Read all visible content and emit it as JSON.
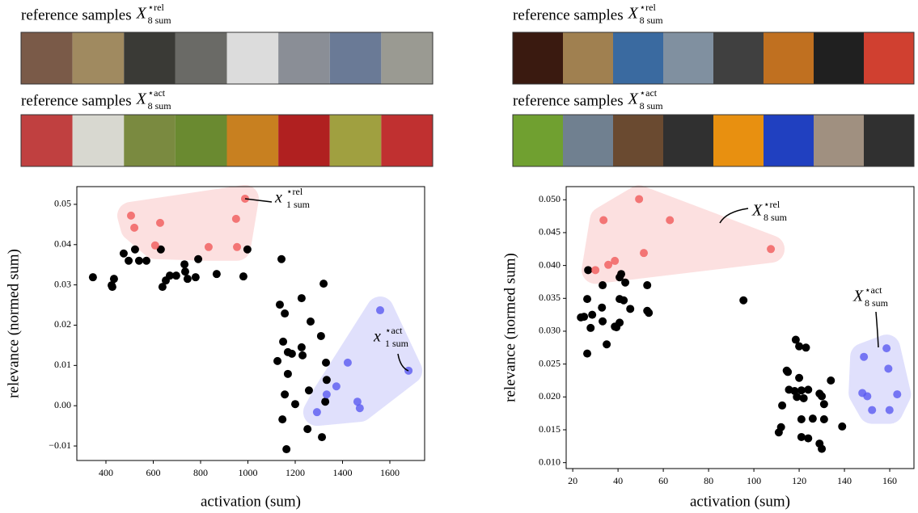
{
  "chart_data": [
    {
      "type": "scatter",
      "samples": [
        {
          "label": "reference samples",
          "symbol": "X",
          "sup": "⋆rel",
          "sub": "8 sum"
        },
        {
          "label": "reference samples",
          "symbol": "X",
          "sup": "⋆act",
          "sub": "8 sum"
        }
      ],
      "xlabel": "activation (sum)",
      "ylabel": "relevance (normed sum)",
      "xlim": [
        277,
        1747
      ],
      "ylim": [
        -0.0136,
        0.0544
      ],
      "xticks": [
        400,
        600,
        800,
        1000,
        1200,
        1400,
        1600
      ],
      "yticks": [
        {
          "value": -0.01,
          "label": "−0.01"
        },
        {
          "value": 0,
          "label": "0.00"
        },
        {
          "value": 0.01,
          "label": "0.01"
        },
        {
          "value": 0.02,
          "label": "0.02"
        },
        {
          "value": 0.03,
          "label": "0.03"
        },
        {
          "value": 0.04,
          "label": "0.04"
        },
        {
          "value": 0.05,
          "label": "0.05"
        }
      ],
      "series": [
        {
          "color": "#000000",
          "hull": false,
          "x": [
            345,
            424,
            434,
            427,
            475,
            496,
            523,
            540,
            571,
            632,
            639,
            653,
            670,
            697,
            732,
            735,
            745,
            779,
            790,
            868,
            981,
            998,
            1142,
            1135,
            1156,
            1227,
            1265,
            1149,
            1125,
            1169,
            1186,
            1227,
            1231,
            1309,
            1320,
            1330,
            1333,
            1169,
            1156,
            1258,
            1200,
            1327,
            1146,
            1252,
            1313,
            1163
          ],
          "values": [
            0.0319,
            0.0299,
            0.0315,
            0.0295,
            0.0378,
            0.036,
            0.0388,
            0.036,
            0.036,
            0.0388,
            0.0295,
            0.0311,
            0.0323,
            0.0323,
            0.0351,
            0.0333,
            0.0315,
            0.0319,
            0.0364,
            0.0327,
            0.0321,
            0.0388,
            0.0364,
            0.0251,
            0.0229,
            0.0267,
            0.0209,
            0.0159,
            0.0111,
            0.0133,
            0.0129,
            0.0145,
            0.0125,
            0.0173,
            0.0303,
            0.0107,
            0.0064,
            0.0079,
            0.0028,
            0.0038,
            0.0004,
            0.001,
            -0.0034,
            -0.0058,
            -0.0078,
            -0.0108
          ]
        },
        {
          "color": "#f05a5a",
          "hull": true,
          "x": [
            506,
            520,
            629,
            608,
            834,
            950,
            954,
            988
          ],
          "values": [
            0.0472,
            0.0442,
            0.0454,
            0.0398,
            0.0394,
            0.0464,
            0.0394,
            0.0514
          ]
        },
        {
          "color": "#5a5af0",
          "hull": true,
          "x": [
            1559,
            1422,
            1333,
            1374,
            1292,
            1463,
            1473,
            1679
          ],
          "values": [
            0.0237,
            0.0107,
            0.0028,
            0.0048,
            -0.0016,
            0.001,
            -0.0006,
            0.0087
          ]
        }
      ],
      "annotations": [
        {
          "symbol": "x",
          "sup": "⋆rel",
          "sub": "1 sum"
        },
        {
          "symbol": "x",
          "sup": "⋆act",
          "sub": "1 sum"
        }
      ]
    },
    {
      "type": "scatter",
      "samples": [
        {
          "label": "reference samples",
          "symbol": "X",
          "sup": "⋆rel",
          "sub": "8 sum"
        },
        {
          "label": "reference samples",
          "symbol": "X",
          "sup": "⋆act",
          "sub": "8 sum"
        }
      ],
      "xlabel": "activation (sum)",
      "ylabel": "relevance (normed sum)",
      "xlim": [
        17.1,
        170.7
      ],
      "ylim": [
        0.0091,
        0.052
      ],
      "xticks": [
        20,
        40,
        60,
        80,
        100,
        120,
        140,
        160
      ],
      "yticks": [
        {
          "value": 0.01,
          "label": "0.010"
        },
        {
          "value": 0.015,
          "label": "0.015"
        },
        {
          "value": 0.02,
          "label": "0.020"
        },
        {
          "value": 0.025,
          "label": "0.025"
        },
        {
          "value": 0.03,
          "label": "0.030"
        },
        {
          "value": 0.035,
          "label": "0.035"
        },
        {
          "value": 0.04,
          "label": "0.040"
        },
        {
          "value": 0.045,
          "label": "0.045"
        },
        {
          "value": 0.05,
          "label": "0.050"
        }
      ],
      "series": [
        {
          "color": "#000000",
          "hull": false,
          "x": [
            26.8,
            41.4,
            40.7,
            33.2,
            43.2,
            52.9,
            25,
            26.4,
            28.6,
            32.9,
            23.6,
            40.7,
            42.5,
            45.4,
            52.9,
            53.6,
            27.9,
            33.2,
            38.6,
            40.7,
            39.3,
            35,
            26.4,
            95.4,
            118.5,
            120,
            123,
            114.5,
            115,
            134,
            120,
            115.5,
            118,
            121,
            124,
            119,
            122,
            129,
            130,
            131,
            112.5,
            121,
            126,
            131,
            139,
            112,
            111,
            121,
            124,
            129,
            130
          ],
          "values": [
            0.0393,
            0.0387,
            0.0382,
            0.037,
            0.0374,
            0.037,
            0.0322,
            0.0349,
            0.0325,
            0.0336,
            0.0321,
            0.0349,
            0.0347,
            0.0334,
            0.0331,
            0.0328,
            0.0305,
            0.0315,
            0.0307,
            0.0313,
            0.0306,
            0.028,
            0.0266,
            0.0347,
            0.0287,
            0.0277,
            0.0275,
            0.024,
            0.0238,
            0.0225,
            0.0229,
            0.0211,
            0.0209,
            0.021,
            0.0211,
            0.02,
            0.0198,
            0.0205,
            0.0201,
            0.0189,
            0.0187,
            0.0166,
            0.0167,
            0.0166,
            0.0155,
            0.0154,
            0.0146,
            0.0139,
            0.0137,
            0.0129,
            0.0121
          ]
        },
        {
          "color": "#f05a5a",
          "hull": true,
          "x": [
            33.6,
            49.3,
            62.9,
            30,
            35.7,
            38.6,
            51.4,
            107.5
          ],
          "values": [
            0.0469,
            0.0501,
            0.0469,
            0.0393,
            0.0401,
            0.0407,
            0.0419,
            0.0425
          ]
        },
        {
          "color": "#5a5af0",
          "hull": true,
          "x": [
            148.6,
            158.6,
            159.4,
            147.9,
            150.1,
            163.3,
            152.2,
            159.9
          ],
          "values": [
            0.0261,
            0.0274,
            0.0243,
            0.0206,
            0.0201,
            0.0204,
            0.018,
            0.018
          ]
        }
      ],
      "annotations": [
        {
          "symbol": "X",
          "sup": "⋆rel",
          "sub": "8 sum"
        },
        {
          "symbol": "X",
          "sup": "⋆act",
          "sub": "8 sum"
        }
      ]
    }
  ]
}
